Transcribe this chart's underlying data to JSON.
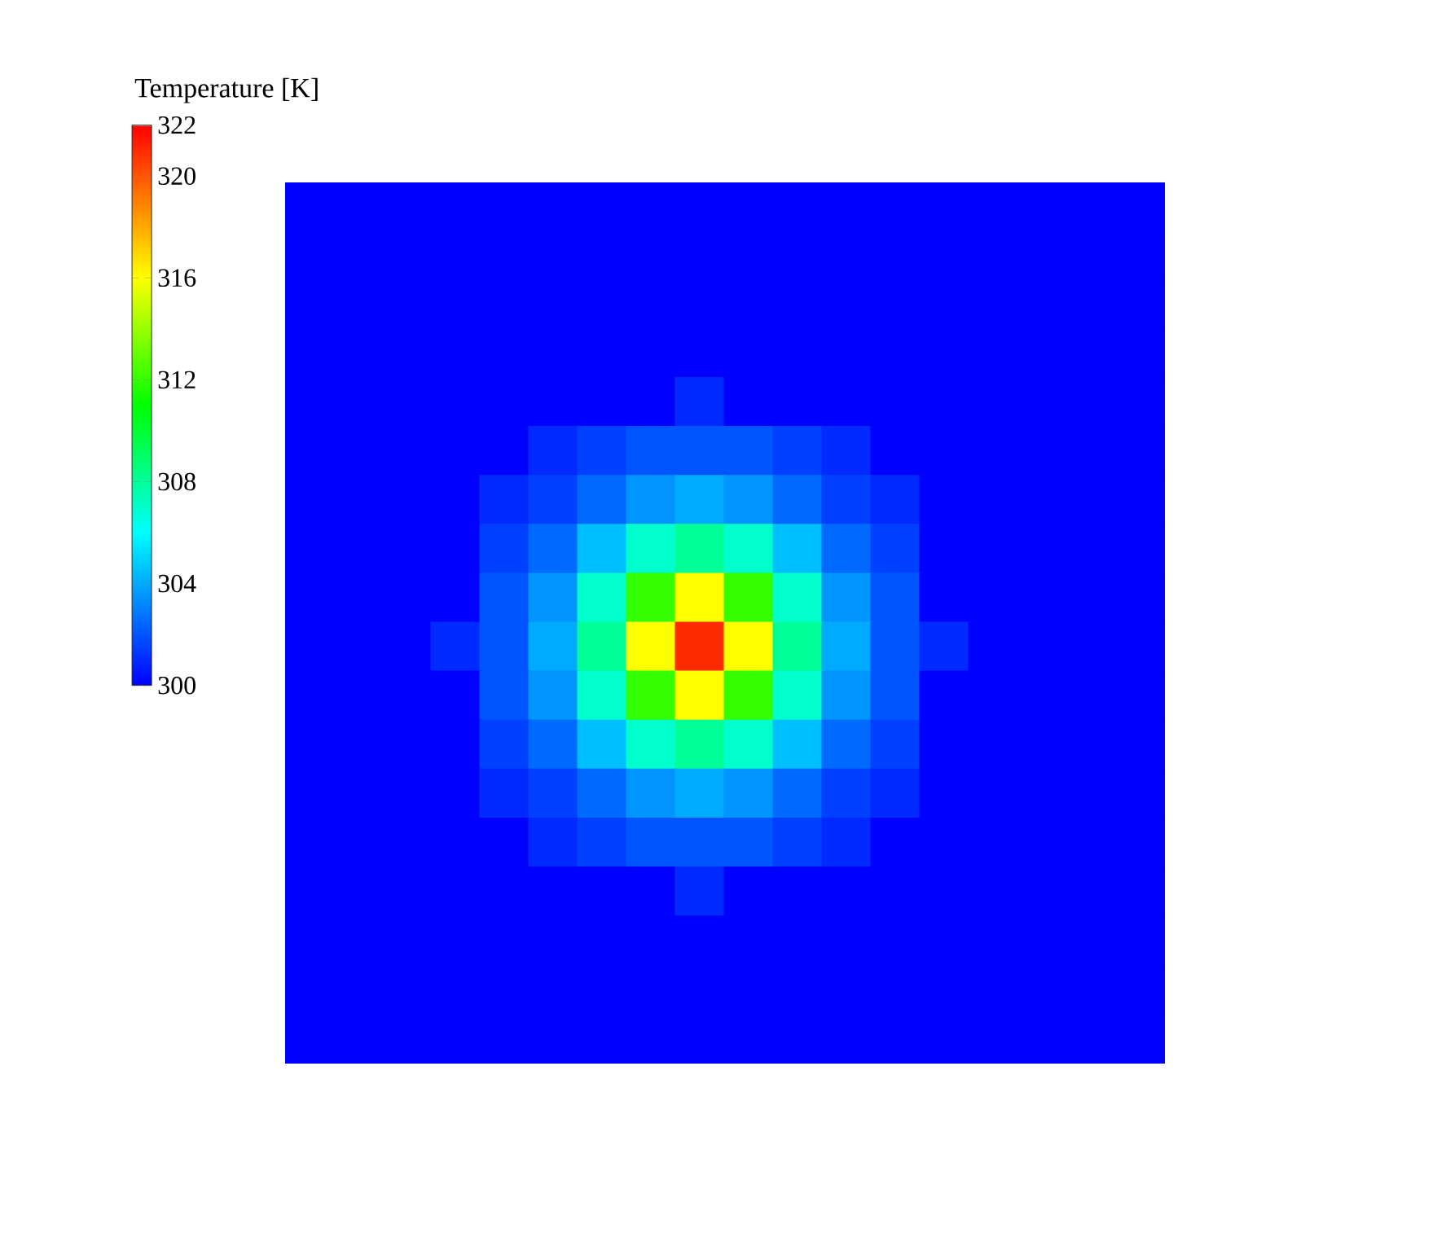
{
  "chart_data": {
    "type": "heatmap",
    "clabel": "Temperature [K]",
    "categories": [
      null,
      null,
      null,
      null,
      null,
      null,
      null,
      null,
      null,
      null,
      null,
      null,
      null,
      null,
      null,
      null,
      null,
      null
    ],
    "y_categories": [
      null,
      null,
      null,
      null,
      null,
      null,
      null,
      null,
      null,
      null,
      null,
      null,
      null,
      null,
      null,
      null,
      null,
      null
    ],
    "tick_labels": false,
    "clim": [
      300,
      322
    ],
    "cticks": [
      300,
      304,
      308,
      312,
      316,
      320,
      322
    ],
    "cells": [
      [
        300,
        300,
        300,
        300,
        300,
        300,
        300,
        300,
        300,
        300,
        300,
        300,
        300,
        300,
        300,
        300,
        300,
        300
      ],
      [
        300,
        300,
        300,
        300,
        300,
        300,
        300,
        300,
        300,
        300,
        300,
        300,
        300,
        300,
        300,
        300,
        300,
        300
      ],
      [
        300,
        300,
        300,
        300,
        300,
        300,
        300,
        300,
        300,
        300,
        300,
        300,
        300,
        300,
        300,
        300,
        300,
        300
      ],
      [
        300,
        300,
        300,
        300,
        300,
        300,
        300,
        300,
        300,
        300,
        300,
        300,
        300,
        300,
        300,
        300,
        300,
        300
      ],
      [
        300,
        300,
        300,
        300,
        300,
        300,
        300,
        300,
        301,
        300,
        300,
        300,
        300,
        300,
        300,
        300,
        300,
        300
      ],
      [
        300,
        300,
        300,
        300,
        300,
        301,
        301.5,
        302,
        302,
        302,
        301.5,
        301,
        300,
        300,
        300,
        300,
        300,
        300
      ],
      [
        300,
        300,
        300,
        300,
        301,
        301.5,
        302.5,
        303.5,
        304,
        303.5,
        302.5,
        301.5,
        301,
        300,
        300,
        300,
        300,
        300
      ],
      [
        300,
        300,
        300,
        300,
        301.5,
        302.5,
        304.5,
        307,
        308,
        307,
        304.5,
        302.5,
        301.5,
        300,
        300,
        300,
        300,
        300
      ],
      [
        300,
        300,
        300,
        300,
        302,
        303.5,
        307,
        312,
        316,
        312,
        307,
        303.5,
        302,
        300,
        300,
        300,
        300,
        300
      ],
      [
        300,
        300,
        300,
        301,
        302,
        304,
        308,
        316,
        321,
        316,
        308,
        304,
        302,
        301,
        300,
        300,
        300,
        300
      ],
      [
        300,
        300,
        300,
        300,
        302,
        303.5,
        307,
        312,
        316,
        312,
        307,
        303.5,
        302,
        300,
        300,
        300,
        300,
        300
      ],
      [
        300,
        300,
        300,
        300,
        301.5,
        302.5,
        304.5,
        307,
        308,
        307,
        304.5,
        302.5,
        301.5,
        300,
        300,
        300,
        300,
        300
      ],
      [
        300,
        300,
        300,
        300,
        301,
        301.5,
        302.5,
        303.5,
        304,
        303.5,
        302.5,
        301.5,
        301,
        300,
        300,
        300,
        300,
        300
      ],
      [
        300,
        300,
        300,
        300,
        300,
        301,
        301.5,
        302,
        302,
        302,
        301.5,
        301,
        300,
        300,
        300,
        300,
        300,
        300
      ],
      [
        300,
        300,
        300,
        300,
        300,
        300,
        300,
        300,
        301,
        300,
        300,
        300,
        300,
        300,
        300,
        300,
        300,
        300
      ],
      [
        300,
        300,
        300,
        300,
        300,
        300,
        300,
        300,
        300,
        300,
        300,
        300,
        300,
        300,
        300,
        300,
        300,
        300
      ],
      [
        300,
        300,
        300,
        300,
        300,
        300,
        300,
        300,
        300,
        300,
        300,
        300,
        300,
        300,
        300,
        300,
        300,
        300
      ],
      [
        300,
        300,
        300,
        300,
        300,
        300,
        300,
        300,
        300,
        300,
        300,
        300,
        300,
        300,
        300,
        300,
        300,
        300
      ]
    ]
  }
}
